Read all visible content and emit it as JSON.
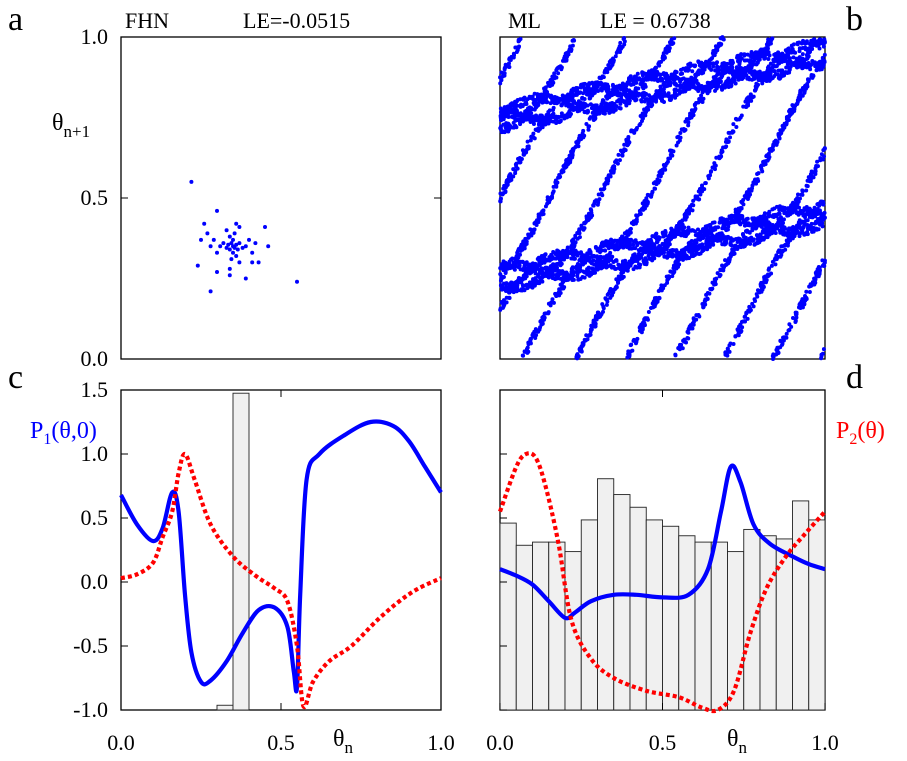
{
  "chart_data": [
    {
      "panel": "a",
      "type": "scatter",
      "model": "FHN",
      "lyapunov": "LE=-0.0515",
      "ylabel": "θn+1",
      "xlim": [
        0,
        1
      ],
      "ylim": [
        0,
        1
      ],
      "yticks": [
        "0.0",
        "0.5",
        "1.0"
      ],
      "series": [
        {
          "color": "#0000ff",
          "points": [
            [
              0.35,
              0.35
            ],
            [
              0.345,
              0.36
            ],
            [
              0.355,
              0.345
            ],
            [
              0.34,
              0.34
            ],
            [
              0.36,
              0.355
            ],
            [
              0.335,
              0.355
            ],
            [
              0.365,
              0.34
            ],
            [
              0.33,
              0.345
            ],
            [
              0.37,
              0.36
            ],
            [
              0.35,
              0.37
            ],
            [
              0.35,
              0.33
            ],
            [
              0.32,
              0.36
            ],
            [
              0.38,
              0.345
            ],
            [
              0.34,
              0.38
            ],
            [
              0.36,
              0.32
            ],
            [
              0.31,
              0.35
            ],
            [
              0.39,
              0.35
            ],
            [
              0.355,
              0.39
            ],
            [
              0.345,
              0.31
            ],
            [
              0.3,
              0.33
            ],
            [
              0.4,
              0.37
            ],
            [
              0.33,
              0.4
            ],
            [
              0.37,
              0.3
            ],
            [
              0.29,
              0.37
            ],
            [
              0.41,
              0.33
            ],
            [
              0.28,
              0.35
            ],
            [
              0.42,
              0.36
            ],
            [
              0.36,
              0.42
            ],
            [
              0.34,
              0.28
            ],
            [
              0.27,
              0.39
            ],
            [
              0.25,
              0.37
            ],
            [
              0.45,
              0.41
            ],
            [
              0.3,
              0.46
            ],
            [
              0.41,
              0.3
            ],
            [
              0.3,
              0.27
            ],
            [
              0.39,
              0.25
            ],
            [
              0.34,
              0.26
            ],
            [
              0.24,
              0.29
            ],
            [
              0.46,
              0.35
            ],
            [
              0.37,
              0.41
            ],
            [
              0.26,
              0.42
            ],
            [
              0.22,
              0.55
            ],
            [
              0.28,
              0.21
            ],
            [
              0.55,
              0.24
            ],
            [
              0.43,
              0.3
            ]
          ]
        }
      ]
    },
    {
      "panel": "b",
      "type": "scatter",
      "model": "ML",
      "lyapunov": "LE = 0.6738",
      "xlim": [
        0,
        1
      ],
      "ylim": [
        0,
        1
      ],
      "series": [
        {
          "color": "#0000ff",
          "description": "dense chaotic return map (thousands of points tracing folded bands)"
        }
      ]
    },
    {
      "panel": "c",
      "type": "line",
      "xlabel": "θn",
      "xlim": [
        0,
        1
      ],
      "ylim": [
        -1,
        1.5
      ],
      "xticks": [
        "0.0",
        "0.5",
        "1.0"
      ],
      "yticks": [
        "-1.0",
        "-0.5",
        "0.0",
        "0.5",
        "1.0",
        "1.5"
      ],
      "series": [
        {
          "name": "P1(θ,0)",
          "color": "#0000ff",
          "style": "solid",
          "x": [
            0,
            0.05,
            0.1,
            0.13,
            0.16,
            0.18,
            0.2,
            0.22,
            0.25,
            0.28,
            0.33,
            0.38,
            0.43,
            0.48,
            0.52,
            0.54,
            0.55,
            0.56,
            0.58,
            0.62,
            0.7,
            0.78,
            0.85,
            0.9,
            0.95,
            1.0
          ],
          "y": [
            0.68,
            0.45,
            0.32,
            0.42,
            0.7,
            0.55,
            -0.1,
            -0.55,
            -0.78,
            -0.77,
            -0.62,
            -0.4,
            -0.22,
            -0.2,
            -0.35,
            -0.7,
            -0.82,
            -0.1,
            0.8,
            1.0,
            1.15,
            1.25,
            1.22,
            1.1,
            0.9,
            0.7
          ]
        },
        {
          "name": "P2(θ)",
          "color": "#ff0000",
          "style": "dotted",
          "x": [
            0,
            0.05,
            0.1,
            0.13,
            0.16,
            0.18,
            0.2,
            0.23,
            0.28,
            0.35,
            0.42,
            0.48,
            0.52,
            0.55,
            0.57,
            0.6,
            0.65,
            0.72,
            0.8,
            0.87,
            0.93,
            1.0
          ],
          "y": [
            0.03,
            0.06,
            0.15,
            0.35,
            0.55,
            0.85,
            1.0,
            0.8,
            0.45,
            0.2,
            0.05,
            -0.05,
            -0.15,
            -0.5,
            -0.97,
            -0.78,
            -0.62,
            -0.5,
            -0.3,
            -0.15,
            -0.05,
            0.03
          ]
        }
      ],
      "histogram": {
        "bins": [
          [
            0.3,
            0.35,
            0.015
          ],
          [
            0.35,
            0.4,
            1.0
          ]
        ]
      }
    },
    {
      "panel": "d",
      "type": "line",
      "xlabel": "θn",
      "xlim": [
        0,
        1
      ],
      "ylim": [
        -1,
        1.5
      ],
      "xticks": [
        "0.0",
        "0.5",
        "1.0"
      ],
      "series": [
        {
          "name": "P1(θ,0)",
          "color": "#0000ff",
          "style": "solid",
          "x": [
            0,
            0.05,
            0.1,
            0.15,
            0.2,
            0.23,
            0.28,
            0.35,
            0.42,
            0.5,
            0.58,
            0.64,
            0.68,
            0.71,
            0.74,
            0.78,
            0.83,
            0.9,
            0.95,
            1.0
          ],
          "y": [
            0.1,
            0.05,
            -0.02,
            -0.15,
            -0.28,
            -0.24,
            -0.15,
            -0.1,
            -0.1,
            -0.12,
            -0.1,
            0.1,
            0.55,
            0.9,
            0.78,
            0.45,
            0.3,
            0.2,
            0.14,
            0.1
          ],
          "legend_label_hidden": true
        },
        {
          "name": "P2(θ)",
          "color": "#ff0000",
          "style": "dotted",
          "x": [
            0,
            0.05,
            0.08,
            0.11,
            0.14,
            0.18,
            0.22,
            0.28,
            0.35,
            0.45,
            0.55,
            0.62,
            0.67,
            0.72,
            0.77,
            0.82,
            0.88,
            0.94,
            1.0
          ],
          "y": [
            0.55,
            0.9,
            1.0,
            0.97,
            0.75,
            0.3,
            -0.3,
            -0.6,
            -0.75,
            -0.85,
            -0.9,
            -0.98,
            -1.0,
            -0.85,
            -0.4,
            -0.05,
            0.2,
            0.38,
            0.55
          ]
        }
      ],
      "histogram": {
        "bins": [
          [
            0,
            0.05,
            0.59
          ],
          [
            0.05,
            0.1,
            0.52
          ],
          [
            0.1,
            0.15,
            0.53
          ],
          [
            0.15,
            0.2,
            0.53
          ],
          [
            0.2,
            0.25,
            0.5
          ],
          [
            0.25,
            0.3,
            0.6
          ],
          [
            0.3,
            0.35,
            0.73
          ],
          [
            0.35,
            0.4,
            0.68
          ],
          [
            0.4,
            0.45,
            0.64
          ],
          [
            0.45,
            0.5,
            0.6
          ],
          [
            0.5,
            0.55,
            0.58
          ],
          [
            0.55,
            0.6,
            0.55
          ],
          [
            0.6,
            0.65,
            0.53
          ],
          [
            0.65,
            0.7,
            0.53
          ],
          [
            0.7,
            0.75,
            0.5
          ],
          [
            0.75,
            0.8,
            0.57
          ],
          [
            0.8,
            0.85,
            0.55
          ],
          [
            0.85,
            0.9,
            0.54
          ],
          [
            0.9,
            0.95,
            0.66
          ],
          [
            0.95,
            1.0,
            0.6
          ]
        ]
      }
    }
  ],
  "labels": {
    "a": "a",
    "b": "b",
    "c": "c",
    "d": "d",
    "fhn": "FHN",
    "fhn_le": "LE=-0.0515",
    "ml": "ML",
    "ml_le": "LE = 0.6738",
    "theta_next_base": "θ",
    "theta_next_sub": "n+1",
    "theta_base": "θ",
    "theta_sub": "n",
    "p1_base": "P",
    "p1_sub": "1",
    "p1_rest": "(θ,0)",
    "p2_base": "P",
    "p2_sub": "2",
    "p2_rest": "(θ)"
  }
}
